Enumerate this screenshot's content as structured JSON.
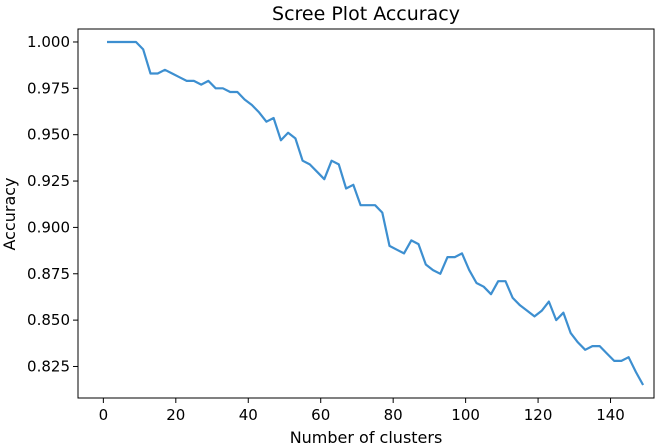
{
  "chart_data": {
    "type": "line",
    "title": "Scree Plot Accuracy",
    "xlabel": "Number of clusters",
    "ylabel": "Accuracy",
    "xlim": [
      -7,
      152
    ],
    "ylim": [
      0.808,
      1.007
    ],
    "xticks": [
      0,
      20,
      40,
      60,
      80,
      100,
      120,
      140
    ],
    "yticks": [
      0.825,
      0.85,
      0.875,
      0.9,
      0.925,
      0.95,
      0.975,
      1.0
    ],
    "ytick_labels": [
      "0.825",
      "0.850",
      "0.875",
      "0.900",
      "0.925",
      "0.950",
      "0.975",
      "1.000"
    ],
    "grid": false,
    "line_color": "#3d8fd0",
    "series": [
      {
        "x": [
          1,
          3,
          5,
          7,
          9,
          11,
          13,
          15,
          17,
          19,
          21,
          23,
          25,
          27,
          29,
          31,
          33,
          35,
          37,
          39,
          41,
          43,
          45,
          47,
          49,
          51,
          53,
          55,
          57,
          59,
          61,
          63,
          65,
          67,
          69,
          71,
          73,
          75,
          77,
          79,
          81,
          83,
          85,
          87,
          89,
          91,
          93,
          95,
          97,
          99,
          101,
          103,
          105,
          107,
          109,
          111,
          113,
          115,
          117,
          119,
          121,
          123,
          125,
          127,
          129,
          131,
          133,
          135,
          137,
          139,
          141,
          143,
          145,
          147,
          149
        ],
        "y": [
          1.0,
          1.0,
          1.0,
          1.0,
          1.0,
          0.996,
          0.983,
          0.983,
          0.985,
          0.983,
          0.981,
          0.979,
          0.979,
          0.977,
          0.979,
          0.975,
          0.975,
          0.973,
          0.973,
          0.969,
          0.966,
          0.962,
          0.957,
          0.959,
          0.947,
          0.951,
          0.948,
          0.936,
          0.934,
          0.93,
          0.926,
          0.936,
          0.934,
          0.921,
          0.923,
          0.912,
          0.912,
          0.912,
          0.908,
          0.89,
          0.888,
          0.886,
          0.893,
          0.891,
          0.88,
          0.877,
          0.875,
          0.884,
          0.884,
          0.886,
          0.877,
          0.87,
          0.868,
          0.864,
          0.871,
          0.871,
          0.862,
          0.858,
          0.855,
          0.852,
          0.855,
          0.86,
          0.85,
          0.854,
          0.843,
          0.838,
          0.834,
          0.836,
          0.836,
          0.832,
          0.828,
          0.828,
          0.83,
          0.822,
          0.815
        ]
      }
    ]
  }
}
